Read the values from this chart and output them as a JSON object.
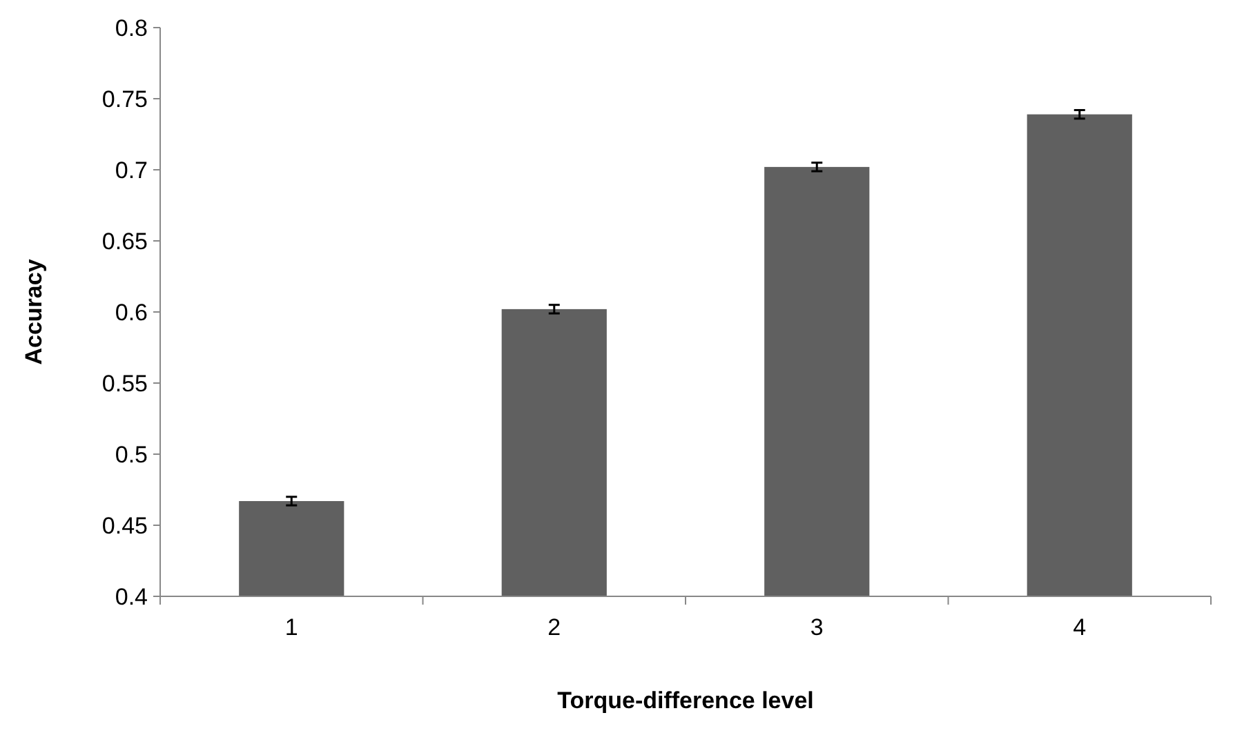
{
  "chart_data": {
    "type": "bar",
    "xlabel": "Torque-difference level",
    "ylabel": "Accuracy",
    "categories": [
      "1",
      "2",
      "3",
      "4"
    ],
    "values": [
      0.467,
      0.602,
      0.702,
      0.739
    ],
    "errors": [
      0.003,
      0.003,
      0.003,
      0.003
    ],
    "color": "#606060",
    "ylim": [
      0.4,
      0.8
    ],
    "yticks": [
      {
        "value": 0.4,
        "label": "0.4"
      },
      0.45,
      {
        "value": 0.5,
        "label": "0.5"
      },
      0.55,
      {
        "value": 0.6,
        "label": "0.6"
      },
      0.65,
      {
        "value": 0.7,
        "label": "0.7"
      },
      0.75,
      {
        "value": 0.8,
        "label": "0.8"
      }
    ],
    "grid": false
  }
}
